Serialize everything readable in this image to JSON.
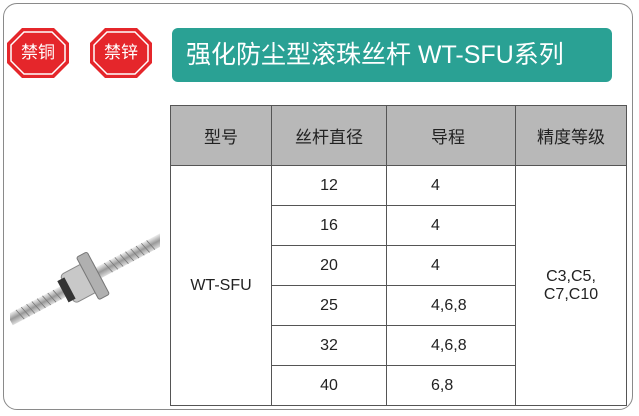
{
  "header": {
    "badges": [
      "禁铜",
      "禁锌"
    ],
    "title": "强化防尘型滚珠丝杆 WT-SFU系列"
  },
  "table": {
    "columns": [
      "型号",
      "丝杆直径",
      "导程",
      "精度等级"
    ],
    "model": "WT-SFU",
    "rows": [
      [
        12,
        "4"
      ],
      [
        16,
        "4"
      ],
      [
        20,
        "4"
      ],
      [
        25,
        "4,6,8"
      ],
      [
        32,
        "4,6,8"
      ],
      [
        40,
        "6,8"
      ]
    ],
    "accuracy": [
      "C3,C5,",
      "C7,C10"
    ]
  }
}
